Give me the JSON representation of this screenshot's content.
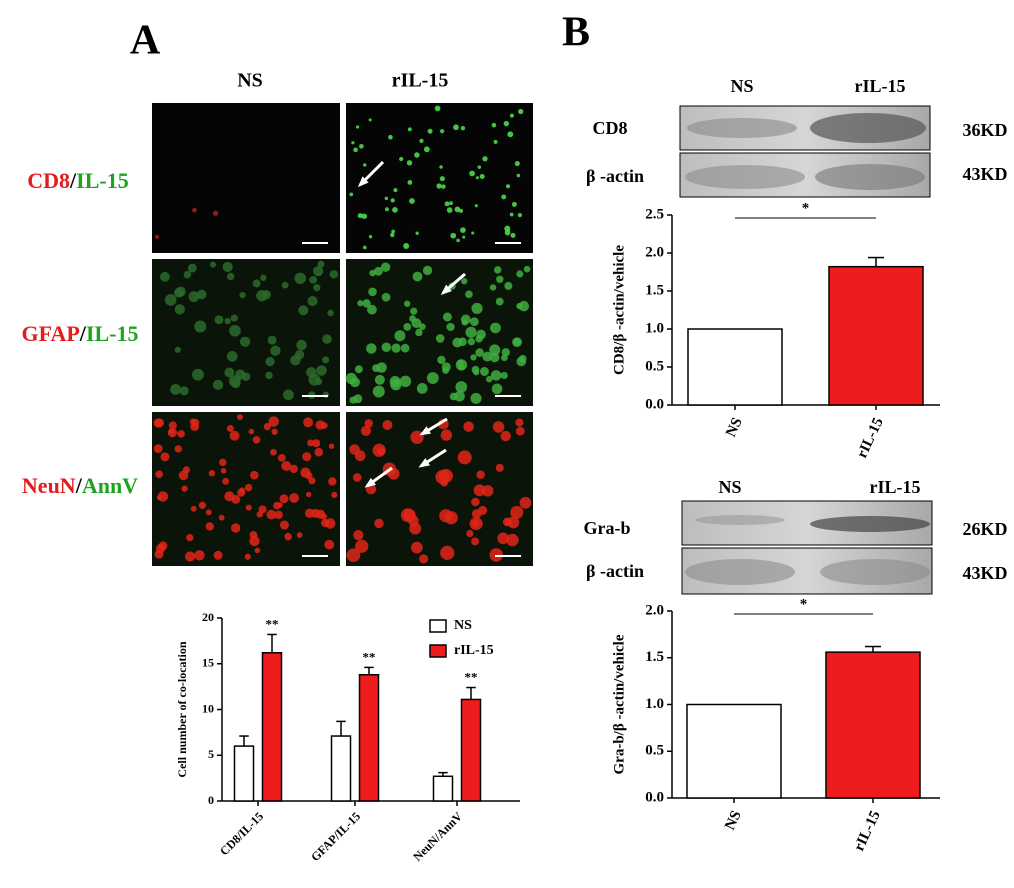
{
  "panel_labels": [
    "A",
    "B"
  ],
  "micrographs": {
    "columns": [
      "NS",
      "rIL-15"
    ],
    "rows": [
      [
        "CD8",
        "/",
        "IL-15"
      ],
      [
        "GFAP",
        "/",
        "IL-15"
      ],
      [
        "NeuN",
        "/",
        "AnnV"
      ]
    ]
  },
  "blots": [
    {
      "lanes": [
        "NS",
        "rIL-15"
      ],
      "rows": [
        [
          "CD8",
          "36KD"
        ],
        [
          "β -actin",
          "43KD"
        ]
      ]
    },
    {
      "lanes": [
        "NS",
        "rIL-15"
      ],
      "rows": [
        [
          "Gra-b",
          "26KD"
        ],
        [
          "β -actin",
          "43KD"
        ]
      ]
    }
  ],
  "chart_data": [
    {
      "type": "bar",
      "y_label": "Cell number of co-location",
      "categories": [
        "CD8/IL-15",
        "GFAP/IL-15",
        "NeuN/AnnV"
      ],
      "series": [
        {
          "name": "NS",
          "color": "#ffffff",
          "values": [
            6.0,
            7.1,
            2.7
          ],
          "errors": [
            1.1,
            1.6,
            0.4
          ]
        },
        {
          "name": "rIL-15",
          "color": "#ee1c1c",
          "values": [
            16.2,
            13.8,
            11.1
          ],
          "errors": [
            2.0,
            0.8,
            1.3
          ],
          "annotations": [
            "**",
            "**",
            "**"
          ]
        }
      ],
      "ylim": [
        0,
        20
      ],
      "yticks": [
        0,
        5,
        10,
        15,
        20
      ],
      "legend": "upper right"
    },
    {
      "type": "bar",
      "y_label": "CD8/β -actin/vehicle",
      "categories": [
        "NS",
        "rIL-15"
      ],
      "series": [
        {
          "colors": [
            "#ffffff",
            "#ee1c1c"
          ],
          "values": [
            1.0,
            1.82
          ],
          "errors": [
            null,
            0.12
          ]
        }
      ],
      "significance": "*",
      "ylim": [
        0,
        2.5
      ],
      "yticks": [
        {
          "value": 0,
          "label": "0.0"
        },
        {
          "value": 0.5,
          "label": "0.5"
        },
        {
          "value": 1,
          "label": "1.0"
        },
        {
          "value": 1.5,
          "label": "1.5"
        },
        {
          "value": 2,
          "label": "2.0"
        },
        {
          "value": 2.5,
          "label": "2.5"
        }
      ]
    },
    {
      "type": "bar",
      "y_label": "Gra-b/β -actin/vehicle",
      "categories": [
        "NS",
        "rIL-15"
      ],
      "series": [
        {
          "colors": [
            "#ffffff",
            "#ee1c1c"
          ],
          "values": [
            1.0,
            1.56
          ],
          "errors": [
            null,
            0.06
          ]
        }
      ],
      "significance": "*",
      "ylim": [
        0,
        2.0
      ],
      "yticks": [
        {
          "value": 0,
          "label": "0.0"
        },
        {
          "value": 0.5,
          "label": "0.5"
        },
        {
          "value": 1,
          "label": "1.0"
        },
        {
          "value": 1.5,
          "label": "1.5"
        },
        {
          "value": 2,
          "label": "2.0"
        }
      ]
    }
  ]
}
